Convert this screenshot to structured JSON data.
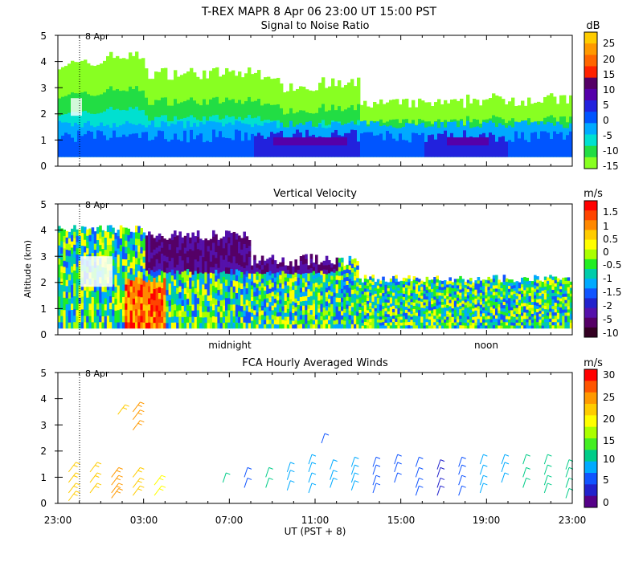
{
  "header": {
    "title": "T-REX   MAPR   8 Apr 06   23:00  UT   15:00   PST"
  },
  "chart_data": [
    {
      "type": "heatmap",
      "title": "Signal to Noise Ratio",
      "xlabel": "",
      "ylabel": "",
      "ylim": [
        0,
        5
      ],
      "yticks": [
        "0",
        "1",
        "2",
        "3",
        "4",
        "5"
      ],
      "date_marker": "8 Apr",
      "colorbar": {
        "unit": "dB",
        "labels": [
          "25",
          "20",
          "15",
          "10",
          "5",
          "0",
          "-5",
          "-10",
          "-15"
        ],
        "colors": [
          "#ffcc00",
          "#ff9900",
          "#ff6600",
          "#ff2200",
          "#550066",
          "#5500aa",
          "#2222dd",
          "#0055ff",
          "#00aaff",
          "#00e0d0",
          "#22dd44",
          "#88ff22"
        ]
      }
    },
    {
      "type": "heatmap",
      "title": "Vertical Velocity",
      "xlabel": "",
      "ylabel": "Altitude (km)",
      "ylim": [
        0,
        5
      ],
      "yticks": [
        "0",
        "1",
        "2",
        "3",
        "4",
        "5"
      ],
      "date_marker": "8 Apr",
      "time_labels": [
        "midnight",
        "noon"
      ],
      "colorbar": {
        "unit": "m/s",
        "labels": [
          "1.5",
          "1",
          "0.5",
          "0",
          "-0.5",
          "-1",
          "-1.5",
          "-2",
          "-5",
          "-10"
        ],
        "colors": [
          "#ff0000",
          "#ff4400",
          "#ff8800",
          "#ffcc00",
          "#ffff00",
          "#aaff00",
          "#22ee22",
          "#00ccaa",
          "#00aaff",
          "#1155ff",
          "#2222cc",
          "#5511aa",
          "#550066",
          "#330022"
        ]
      }
    },
    {
      "type": "scatter",
      "title": "FCA Hourly Averaged Winds",
      "xlabel": "UT  (PST + 8)",
      "ylabel": "",
      "ylim": [
        0,
        5
      ],
      "yticks": [
        "0",
        "1",
        "2",
        "3",
        "4",
        "5"
      ],
      "xticks": [
        "23:00",
        "03:00",
        "07:00",
        "11:00",
        "15:00",
        "19:00",
        "23:00"
      ],
      "date_marker": "8 Apr",
      "colorbar": {
        "unit": "m/s",
        "labels": [
          "30",
          "25",
          "20",
          "15",
          "10",
          "5",
          "0"
        ],
        "colors": [
          "#ff0000",
          "#ff5500",
          "#ff9900",
          "#ffcc00",
          "#ffff00",
          "#aaff00",
          "#44ee22",
          "#00cc88",
          "#00aaff",
          "#1155ff",
          "#2222cc",
          "#550088"
        ]
      },
      "barbs": [
        {
          "hour": 0.5,
          "heights": [
            1.2,
            0.8,
            0.4,
            0.1
          ],
          "speed": 22
        },
        {
          "hour": 1.5,
          "heights": [
            1.2,
            0.8,
            0.4
          ],
          "speed": 21
        },
        {
          "hour": 2.5,
          "heights": [
            1.0,
            0.7,
            0.4,
            0.2
          ],
          "speed": 25
        },
        {
          "hour": 3.5,
          "heights": [
            1.0,
            0.6,
            0.3
          ],
          "speed": 22
        },
        {
          "hour": 4.5,
          "heights": [
            0.7,
            0.3
          ],
          "speed": 20
        },
        {
          "hour": 2.8,
          "heights": [
            3.4
          ],
          "speed": 23
        },
        {
          "hour": 3.5,
          "heights": [
            3.5,
            3.2,
            2.8
          ],
          "speed": 24
        },
        {
          "hour": 7.7,
          "heights": [
            0.8
          ],
          "speed": 10
        },
        {
          "hour": 8.7,
          "heights": [
            1.0,
            0.6
          ],
          "speed": 5
        },
        {
          "hour": 9.7,
          "heights": [
            1.0,
            0.6
          ],
          "speed": 10
        },
        {
          "hour": 10.7,
          "heights": [
            1.2,
            0.9,
            0.5
          ],
          "speed": 8
        },
        {
          "hour": 11.7,
          "heights": [
            1.5,
            1.2,
            0.8,
            0.4
          ],
          "speed": 9
        },
        {
          "hour": 12.7,
          "heights": [
            1.3,
            0.9,
            0.6
          ],
          "speed": 9
        },
        {
          "hour": 13.7,
          "heights": [
            1.4,
            1.1,
            0.8,
            0.5
          ],
          "speed": 7
        },
        {
          "hour": 14.7,
          "heights": [
            1.4,
            1.1,
            0.7,
            0.4
          ],
          "speed": 6
        },
        {
          "hour": 15.7,
          "heights": [
            1.5,
            1.2,
            0.8
          ],
          "speed": 5
        },
        {
          "hour": 16.7,
          "heights": [
            1.4,
            1.0,
            0.6,
            0.3
          ],
          "speed": 6
        },
        {
          "hour": 17.7,
          "heights": [
            1.3,
            1.0,
            0.6,
            0.3
          ],
          "speed": 4
        },
        {
          "hour": 18.7,
          "heights": [
            1.4,
            1.1,
            0.7,
            0.3
          ],
          "speed": 5
        },
        {
          "hour": 19.7,
          "heights": [
            1.5,
            1.1,
            0.7,
            0.4
          ],
          "speed": 7
        },
        {
          "hour": 20.7,
          "heights": [
            1.5,
            1.2,
            0.8
          ],
          "speed": 9
        },
        {
          "hour": 21.7,
          "heights": [
            1.5,
            1.0,
            0.6
          ],
          "speed": 10
        },
        {
          "hour": 22.7,
          "heights": [
            1.5,
            1.1,
            0.7,
            0.4
          ],
          "speed": 11
        },
        {
          "hour": 23.7,
          "heights": [
            1.3,
            1.0,
            0.6,
            0.2
          ],
          "speed": 12
        },
        {
          "hour": 12.3,
          "heights": [
            2.3
          ],
          "speed": 5
        }
      ]
    }
  ]
}
